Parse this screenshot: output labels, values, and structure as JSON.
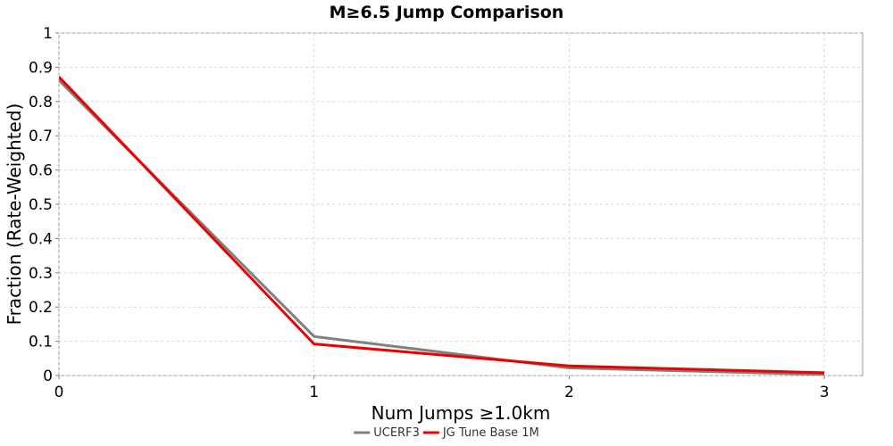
{
  "chart_data": {
    "type": "line",
    "title": "M≥6.5 Jump Comparison",
    "xlabel": "Num Jumps ≥1.0km",
    "ylabel": "Fraction (Rate-Weighted)",
    "xlim": [
      0,
      3.15
    ],
    "ylim": [
      0,
      1
    ],
    "x_ticks": [
      0,
      1,
      2,
      3
    ],
    "x_tick_labels": [
      "0",
      "1",
      "2",
      "3"
    ],
    "y_ticks": [
      0,
      0.1,
      0.2,
      0.3,
      0.4,
      0.5,
      0.6,
      0.7,
      0.8,
      0.9,
      1
    ],
    "y_tick_labels": [
      "0",
      "0.1",
      "0.2",
      "0.3",
      "0.4",
      "0.5",
      "0.6",
      "0.7",
      "0.8",
      "0.9",
      "1"
    ],
    "grid": true,
    "legend_position": "bottom-center",
    "x": [
      0,
      1,
      2,
      3
    ],
    "series": [
      {
        "name": "UCERF3",
        "color": "#808080",
        "values": [
          0.862,
          0.114,
          0.022,
          0.003
        ]
      },
      {
        "name": "JG Tune Base 1M",
        "color": "#ee0000",
        "values": [
          0.872,
          0.092,
          0.028,
          0.008
        ]
      }
    ]
  }
}
